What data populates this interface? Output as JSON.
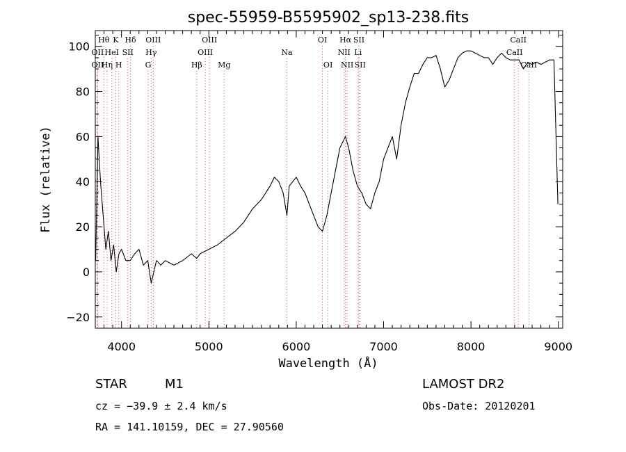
{
  "chart_data": {
    "type": "line",
    "title": "spec-55959-B5595902_sp13-238.fits",
    "xlabel": "Wavelength (Å)",
    "ylabel": "Flux (relative)",
    "xlim": [
      3700,
      9050
    ],
    "ylim": [
      -25,
      107
    ],
    "xticks": [
      4000,
      5000,
      6000,
      7000,
      8000,
      9000
    ],
    "yticks": [
      -20,
      0,
      20,
      40,
      60,
      80,
      100
    ],
    "grid": false,
    "line_color": "#000000",
    "marker_color": "#d24a4a",
    "series": [
      {
        "x": [
          3705,
          3730,
          3760,
          3790,
          3820,
          3850,
          3880,
          3910,
          3940,
          3970,
          4000,
          4050,
          4100,
          4150,
          4200,
          4250,
          4300,
          4340,
          4400,
          4450,
          4500,
          4600,
          4700,
          4800,
          4861,
          4900,
          5000,
          5100,
          5200,
          5300,
          5400,
          5500,
          5600,
          5700,
          5750,
          5800,
          5850,
          5893,
          5920,
          5960,
          6000,
          6050,
          6100,
          6150,
          6200,
          6250,
          6300,
          6350,
          6400,
          6450,
          6500,
          6563,
          6600,
          6650,
          6700,
          6750,
          6800,
          6850,
          6900,
          6950,
          7000,
          7050,
          7100,
          7150,
          7200,
          7250,
          7300,
          7350,
          7400,
          7450,
          7500,
          7550,
          7600,
          7650,
          7700,
          7750,
          7800,
          7850,
          7900,
          7950,
          8000,
          8050,
          8100,
          8150,
          8200,
          8250,
          8300,
          8350,
          8400,
          8450,
          8500,
          8550,
          8600,
          8650,
          8700,
          8750,
          8800,
          8850,
          8900,
          8950,
          8995
        ],
        "y": [
          5,
          60,
          40,
          25,
          10,
          18,
          5,
          12,
          0,
          8,
          10,
          5,
          5,
          8,
          10,
          3,
          5,
          -5,
          5,
          3,
          5,
          3,
          5,
          8,
          6,
          8,
          10,
          12,
          15,
          18,
          22,
          28,
          32,
          38,
          42,
          40,
          35,
          25,
          38,
          40,
          42,
          38,
          35,
          30,
          25,
          20,
          18,
          25,
          35,
          45,
          55,
          60,
          55,
          45,
          38,
          35,
          30,
          28,
          35,
          40,
          50,
          55,
          60,
          50,
          65,
          75,
          82,
          88,
          88,
          92,
          95,
          95,
          96,
          90,
          82,
          85,
          90,
          95,
          97,
          98,
          98,
          97,
          96,
          95,
          95,
          92,
          95,
          97,
          95,
          94,
          94,
          94,
          90,
          93,
          92,
          93,
          92,
          93,
          94,
          94,
          30
        ]
      }
    ],
    "lines": [
      {
        "name": "Hθ",
        "wave": 3798,
        "side": "top",
        "row": 0
      },
      {
        "name": "K",
        "wave": 3934,
        "side": "top",
        "row": 0
      },
      {
        "name": "Hδ",
        "wave": 4102,
        "side": "top",
        "row": 0
      },
      {
        "name": "OIII",
        "wave": 4363,
        "side": "top",
        "row": 0
      },
      {
        "name": "OIII",
        "wave": 5007,
        "side": "top",
        "row": 0
      },
      {
        "name": "OI",
        "wave": 6300,
        "side": "top",
        "row": 0
      },
      {
        "name": "Hα",
        "wave": 6563,
        "side": "top",
        "row": 0
      },
      {
        "name": "SII",
        "wave": 6717,
        "side": "top",
        "row": 0
      },
      {
        "name": "CaII",
        "wave": 8542,
        "side": "top",
        "row": 0
      },
      {
        "name": "OII",
        "wave": 3727,
        "side": "top",
        "row": 1
      },
      {
        "name": "HeI",
        "wave": 3889,
        "side": "top",
        "row": 1
      },
      {
        "name": "SII",
        "wave": 4072,
        "side": "top",
        "row": 1
      },
      {
        "name": "Hγ",
        "wave": 4340,
        "side": "top",
        "row": 1
      },
      {
        "name": "OIII",
        "wave": 4959,
        "side": "top",
        "row": 1
      },
      {
        "name": "Na",
        "wave": 5893,
        "side": "top",
        "row": 1
      },
      {
        "name": "NII",
        "wave": 6548,
        "side": "top",
        "row": 1
      },
      {
        "name": "Li",
        "wave": 6708,
        "side": "top",
        "row": 1
      },
      {
        "name": "CaII",
        "wave": 8498,
        "side": "top",
        "row": 1
      },
      {
        "name": "OII",
        "wave": 3727,
        "side": "top",
        "row": 2
      },
      {
        "name": "Hη",
        "wave": 3835,
        "side": "top",
        "row": 2
      },
      {
        "name": "H",
        "wave": 3968,
        "side": "top",
        "row": 2
      },
      {
        "name": "G",
        "wave": 4305,
        "side": "top",
        "row": 2
      },
      {
        "name": "Hβ",
        "wave": 4861,
        "side": "top",
        "row": 2
      },
      {
        "name": "Mg",
        "wave": 5175,
        "side": "top",
        "row": 2
      },
      {
        "name": "OI",
        "wave": 6364,
        "side": "top",
        "row": 2
      },
      {
        "name": "NII",
        "wave": 6583,
        "side": "top",
        "row": 2
      },
      {
        "name": "SII",
        "wave": 6731,
        "side": "top",
        "row": 2
      },
      {
        "name": "CaII",
        "wave": 8662,
        "side": "top",
        "row": 2
      }
    ]
  },
  "info": {
    "object_class": "STAR",
    "subclass": "M1",
    "redshift": "cz = −39.9 ± 2.4 km/s",
    "coordinates": "RA = 141.10159, DEC =  27.90560",
    "survey": "LAMOST DR2",
    "obs_date": "Obs-Date: 20120201"
  }
}
